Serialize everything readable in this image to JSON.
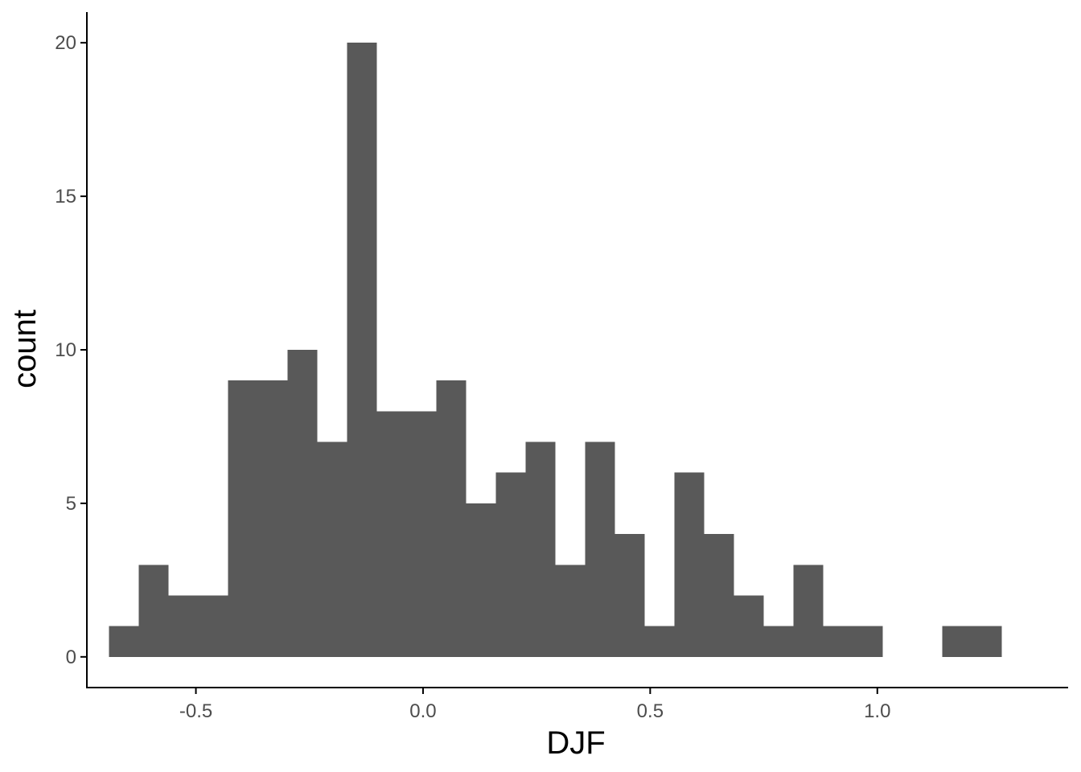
{
  "chart_data": {
    "type": "bar",
    "subtype": "histogram",
    "title": "",
    "xlabel": "DJF",
    "ylabel": "count",
    "bar_color": "#595959",
    "xlim": [
      -0.74,
      1.42
    ],
    "ylim": [
      -1,
      21
    ],
    "grid": false,
    "x_ticks": [
      -0.5,
      0.0,
      0.5,
      1.0
    ],
    "x_tick_labels": [
      "-0.5",
      "0.0",
      "0.5",
      "1.0"
    ],
    "y_ticks": [
      0,
      5,
      10,
      15,
      20
    ],
    "y_tick_labels": [
      "0",
      "5",
      "10",
      "15",
      "20"
    ],
    "bin_width": 0.0655,
    "bins": [
      {
        "x0": -0.691,
        "x1": -0.626,
        "count": 1
      },
      {
        "x0": -0.626,
        "x1": -0.56,
        "count": 3
      },
      {
        "x0": -0.56,
        "x1": -0.495,
        "count": 2
      },
      {
        "x0": -0.495,
        "x1": -0.429,
        "count": 2
      },
      {
        "x0": -0.429,
        "x1": -0.364,
        "count": 9
      },
      {
        "x0": -0.364,
        "x1": -0.298,
        "count": 9
      },
      {
        "x0": -0.298,
        "x1": -0.233,
        "count": 10
      },
      {
        "x0": -0.233,
        "x1": -0.167,
        "count": 7
      },
      {
        "x0": -0.167,
        "x1": -0.102,
        "count": 20
      },
      {
        "x0": -0.102,
        "x1": -0.036,
        "count": 8
      },
      {
        "x0": -0.036,
        "x1": 0.029,
        "count": 8
      },
      {
        "x0": 0.029,
        "x1": 0.095,
        "count": 9
      },
      {
        "x0": 0.095,
        "x1": 0.16,
        "count": 5
      },
      {
        "x0": 0.16,
        "x1": 0.226,
        "count": 6
      },
      {
        "x0": 0.226,
        "x1": 0.291,
        "count": 7
      },
      {
        "x0": 0.291,
        "x1": 0.357,
        "count": 3
      },
      {
        "x0": 0.357,
        "x1": 0.422,
        "count": 7
      },
      {
        "x0": 0.422,
        "x1": 0.488,
        "count": 4
      },
      {
        "x0": 0.488,
        "x1": 0.553,
        "count": 1
      },
      {
        "x0": 0.553,
        "x1": 0.619,
        "count": 6
      },
      {
        "x0": 0.619,
        "x1": 0.684,
        "count": 4
      },
      {
        "x0": 0.684,
        "x1": 0.75,
        "count": 2
      },
      {
        "x0": 0.75,
        "x1": 0.815,
        "count": 1
      },
      {
        "x0": 0.815,
        "x1": 0.881,
        "count": 3
      },
      {
        "x0": 0.881,
        "x1": 0.946,
        "count": 1
      },
      {
        "x0": 0.946,
        "x1": 1.012,
        "count": 1
      },
      {
        "x0": 1.012,
        "x1": 1.077,
        "count": 0
      },
      {
        "x0": 1.077,
        "x1": 1.143,
        "count": 0
      },
      {
        "x0": 1.143,
        "x1": 1.208,
        "count": 1
      },
      {
        "x0": 1.208,
        "x1": 1.274,
        "count": 1
      }
    ]
  }
}
